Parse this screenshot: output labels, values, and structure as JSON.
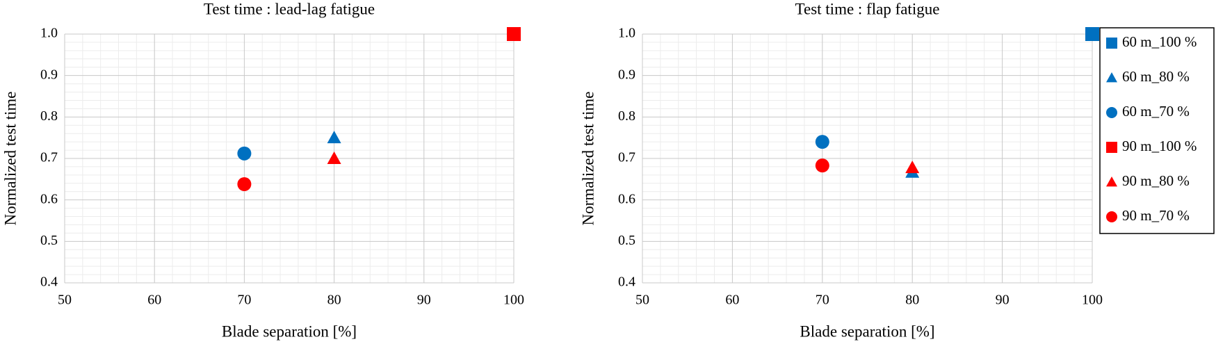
{
  "chart_data": [
    {
      "type": "scatter",
      "title": "Test time : lead-lag fatigue",
      "x_label": "Blade separation [%]",
      "y_label": "Normalized test time",
      "xlim": [
        50,
        100
      ],
      "xticks": [
        50,
        60,
        70,
        80,
        90,
        100
      ],
      "ylim": [
        0.4,
        1
      ],
      "yticks": [
        0.4,
        0.5,
        0.6,
        0.7,
        0.8,
        0.9,
        {
          "value": 1,
          "label": "1.0"
        }
      ],
      "grid": true,
      "minor_grid": true,
      "legend": false,
      "series": [
        {
          "color": "#0070c0",
          "marker": "square",
          "x": [
            100
          ],
          "values": [
            1
          ]
        },
        {
          "color": "#0070c0",
          "marker": "triangle",
          "x": [
            80
          ],
          "values": [
            0.75
          ]
        },
        {
          "color": "#0070c0",
          "marker": "circle",
          "x": [
            70
          ],
          "values": [
            0.712
          ]
        },
        {
          "color": "#ff0000",
          "marker": "square",
          "x": [
            100
          ],
          "values": [
            1
          ]
        },
        {
          "color": "#ff0000",
          "marker": "triangle",
          "x": [
            80
          ],
          "values": [
            0.7
          ]
        },
        {
          "color": "#ff0000",
          "marker": "circle",
          "x": [
            70
          ],
          "values": [
            0.638
          ]
        }
      ]
    },
    {
      "type": "scatter",
      "title": "Test time : flap fatigue",
      "x_label": "Blade separation [%]",
      "y_label": "Normalized test time",
      "xlim": [
        50,
        100
      ],
      "xticks": [
        50,
        60,
        70,
        80,
        90,
        100
      ],
      "ylim": [
        0.4,
        1
      ],
      "yticks": [
        0.4,
        0.5,
        0.6,
        0.7,
        0.8,
        0.9,
        {
          "value": 1,
          "label": "1.0"
        }
      ],
      "grid": true,
      "minor_grid": true,
      "legend": true,
      "series": [
        {
          "name": "60 m_100 %",
          "color": "#0070c0",
          "marker": "square",
          "x": [
            100
          ],
          "values": [
            1
          ]
        },
        {
          "name": "60 m_80 %",
          "color": "#0070c0",
          "marker": "triangle",
          "x": [
            80
          ],
          "values": [
            0.667
          ]
        },
        {
          "name": "60 m_70 %",
          "color": "#0070c0",
          "marker": "circle",
          "x": [
            70
          ],
          "values": [
            0.74
          ]
        },
        {
          "name": "90 m_100 %",
          "color": "#ff0000",
          "marker": "square",
          "x": [
            100
          ],
          "values": [
            null
          ]
        },
        {
          "name": "90 m_80 %",
          "color": "#ff0000",
          "marker": "triangle",
          "x": [
            80
          ],
          "values": [
            0.678
          ]
        },
        {
          "name": "90 m_70 %",
          "color": "#ff0000",
          "marker": "circle",
          "x": [
            70
          ],
          "values": [
            0.683
          ]
        }
      ]
    }
  ]
}
